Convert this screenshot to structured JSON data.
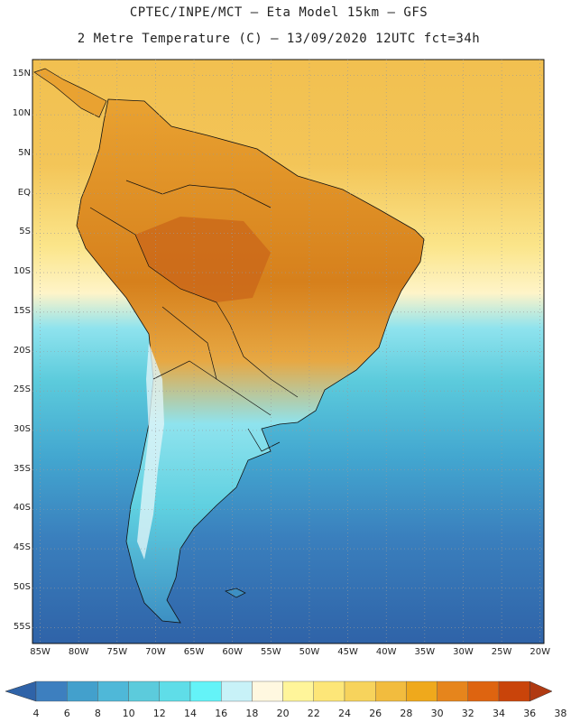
{
  "header": {
    "line1": "CPTEC/INPE/MCT –  Eta Model 15km – GFS",
    "line2": "2 Metre Temperature (C) – 13/09/2020 12UTC fct=34h"
  },
  "map": {
    "lat_labels": [
      "15N",
      "10N",
      "5N",
      "EQ",
      "5S",
      "10S",
      "15S",
      "20S",
      "25S",
      "30S",
      "35S",
      "40S",
      "45S",
      "50S",
      "55S"
    ],
    "lon_labels": [
      "85W",
      "80W",
      "75W",
      "70W",
      "65W",
      "60W",
      "55W",
      "50W",
      "45W",
      "40W",
      "35W",
      "30W",
      "25W",
      "20W"
    ],
    "land_color": "#d88a20",
    "ocean_north_color": "#f2c050",
    "ocean_south_color": "#2f6fb0"
  },
  "colorbar": {
    "labels": [
      "4",
      "6",
      "8",
      "10",
      "12",
      "14",
      "16",
      "18",
      "20",
      "22",
      "24",
      "26",
      "28",
      "30",
      "32",
      "34",
      "36",
      "38"
    ],
    "colors": [
      "#3a6fb0",
      "#3d7fbf",
      "#43a0cc",
      "#4fb8d8",
      "#5ccbdc",
      "#5fdde8",
      "#64f3f8",
      "#c8f2f8",
      "#fff8e0",
      "#fff59a",
      "#fde678",
      "#f7d35c",
      "#f2bc3e",
      "#efa91c",
      "#e6851c",
      "#de6410",
      "#c9440a",
      "#b0340a",
      "#a8401a"
    ],
    "left_arrow_color": "#2f63a8",
    "right_arrow_color": "#b03a12"
  }
}
